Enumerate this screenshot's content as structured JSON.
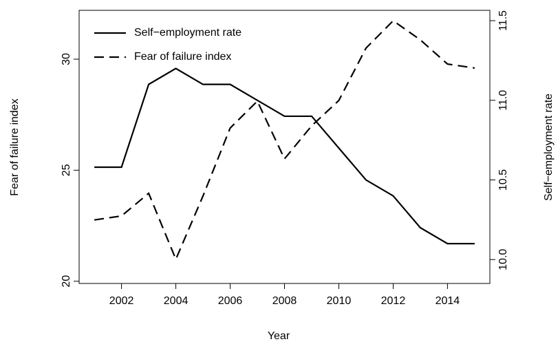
{
  "chart_data": {
    "type": "line",
    "xlabel": "Year",
    "ylabel": "Fear of failure index",
    "y2label": "Self−employment rate",
    "x": [
      2001,
      2002,
      2003,
      2004,
      2005,
      2006,
      2007,
      2008,
      2009,
      2010,
      2011,
      2012,
      2013,
      2014,
      2015
    ],
    "series": [
      {
        "name": "Self−employment rate",
        "color": "#000000",
        "linestyle": "solid",
        "axis": "y2",
        "values": [
          10.58,
          10.58,
          11.1,
          11.2,
          11.1,
          11.1,
          11.0,
          10.9,
          10.9,
          10.7,
          10.5,
          10.4,
          10.2,
          10.1,
          10.1
        ]
      },
      {
        "name": "Fear of failure index",
        "color": "#000000",
        "linestyle": "dashed",
        "axis": "y",
        "values": [
          22.76,
          22.94,
          23.96,
          20.99,
          23.84,
          26.9,
          28.11,
          25.51,
          27.0,
          28.14,
          30.5,
          31.73,
          30.87,
          29.78,
          29.6
        ]
      }
    ],
    "xlim": [
      2000.44,
      2015.56
    ],
    "xticks": [
      2002,
      2004,
      2006,
      2008,
      2010,
      2012,
      2014
    ],
    "ylim": [
      19.9,
      32.2
    ],
    "yticks": [
      20,
      25,
      30
    ],
    "y2lim": [
      9.85,
      11.565
    ],
    "y2ticks": [
      {
        "value": 10,
        "label": "10.0"
      },
      10.5,
      {
        "value": 11,
        "label": "11.0"
      },
      11.5
    ],
    "legend": "top-left",
    "grid": false
  }
}
